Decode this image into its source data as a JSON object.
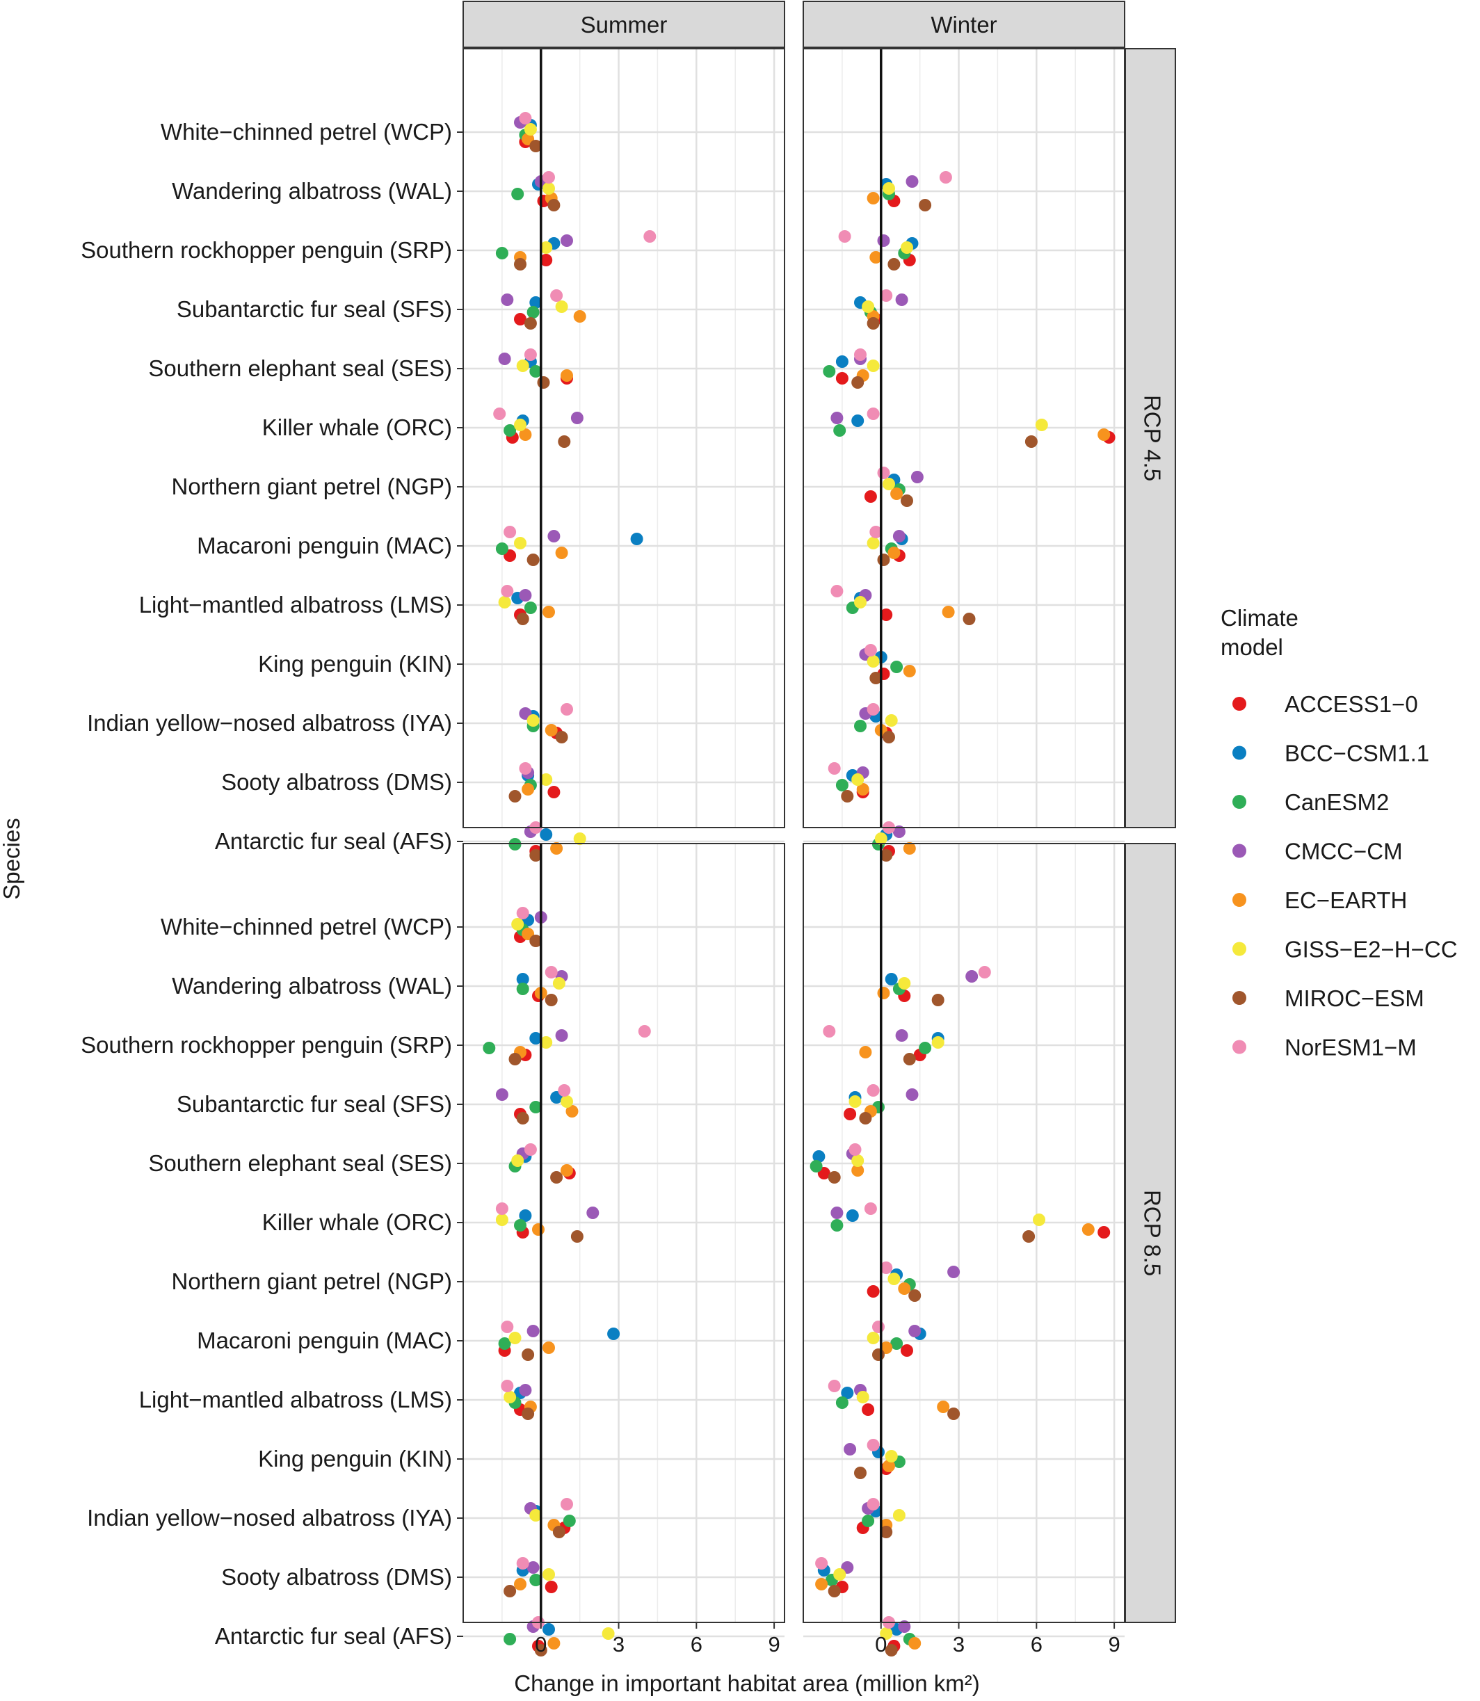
{
  "chart_data": {
    "type": "scatter",
    "xlabel": "Change in important habitat area (million km²)",
    "ylabel": "Species",
    "xlim": [
      -3,
      9.4
    ],
    "xticks": [
      0,
      3,
      6,
      9
    ],
    "grid": true,
    "columns": [
      "Summer",
      "Winter"
    ],
    "rows": [
      "RCP 4.5",
      "RCP 8.5"
    ],
    "species": [
      "White−chinned petrel (WCP)",
      "Wandering albatross (WAL)",
      "Southern rockhopper penguin (SRP)",
      "Subantarctic fur seal (SFS)",
      "Southern elephant seal (SES)",
      "Killer whale (ORC)",
      "Northern giant petrel (NGP)",
      "Macaroni penguin (MAC)",
      "Light−mantled albatross (LMS)",
      "King penguin (KIN)",
      "Indian yellow−nosed albatross (IYA)",
      "Sooty albatross (DMS)",
      "Antarctic fur seal (AFS)"
    ],
    "legend": {
      "title_lines": [
        "Climate",
        "model"
      ],
      "placement": "right",
      "entries": [
        {
          "name": "ACCESS1−0",
          "color": "#e41a1c"
        },
        {
          "name": "BCC−CSM1.1",
          "color": "#0a7fc2"
        },
        {
          "name": "CanESM2",
          "color": "#2fae57"
        },
        {
          "name": "CMCC−CM",
          "color": "#9b59b6"
        },
        {
          "name": "EC−EARTH",
          "color": "#f7931e"
        },
        {
          "name": "GISS−E2−H−CC",
          "color": "#f5e93b"
        },
        {
          "name": "MIROC−ESM",
          "color": "#a0562c"
        },
        {
          "name": "NorESM1−M",
          "color": "#f08cb4"
        }
      ]
    },
    "panels": [
      {
        "column": "Summer",
        "row": "RCP 4.5",
        "points": [
          [
            "WCP",
            [
              -0.6,
              -0.4,
              -0.6,
              -0.8,
              -0.5,
              -0.4,
              -0.2,
              -0.6
            ]
          ],
          [
            "WAL",
            [
              0.1,
              -0.1,
              -0.9,
              0.0,
              0.4,
              0.3,
              0.5,
              0.3
            ]
          ],
          [
            "SRP",
            [
              0.2,
              0.5,
              -1.5,
              1.0,
              -0.8,
              0.2,
              -0.8,
              4.2
            ]
          ],
          [
            "SFS",
            [
              -0.8,
              -0.2,
              -0.3,
              -1.3,
              1.5,
              0.8,
              -0.4,
              0.6
            ]
          ],
          [
            "SES",
            [
              1.0,
              -0.4,
              -0.2,
              -1.4,
              1.0,
              -0.7,
              0.1,
              -0.4
            ]
          ],
          [
            "ORC",
            [
              -1.1,
              -0.7,
              -1.2,
              1.4,
              -0.6,
              -0.8,
              0.9,
              -1.6
            ]
          ],
          [
            "NGP",
            []
          ],
          [
            "MAC",
            [
              -1.2,
              3.7,
              -1.5,
              0.5,
              0.8,
              -0.8,
              -0.3,
              -1.2
            ]
          ],
          [
            "LMS",
            [
              -0.8,
              -0.9,
              -0.4,
              -0.6,
              0.3,
              -1.4,
              -0.7,
              -1.3
            ]
          ],
          [
            "KIN",
            []
          ],
          [
            "IYA",
            [
              0.6,
              -0.3,
              -0.3,
              -0.6,
              0.4,
              -0.3,
              0.8,
              1.0
            ]
          ],
          [
            "DMS",
            [
              0.5,
              -0.5,
              -0.4,
              -0.5,
              -0.5,
              0.2,
              -1.0,
              -0.6
            ]
          ],
          [
            "AFS",
            [
              -0.2,
              0.2,
              -1.0,
              -0.4,
              0.6,
              1.5,
              -0.2,
              -0.2
            ]
          ]
        ]
      },
      {
        "column": "Winter",
        "row": "RCP 4.5",
        "points": [
          [
            "WCP",
            []
          ],
          [
            "WAL",
            [
              0.5,
              0.2,
              0.3,
              1.2,
              -0.3,
              0.3,
              1.7,
              2.5
            ]
          ],
          [
            "SRP",
            [
              1.1,
              1.2,
              0.9,
              0.1,
              -0.2,
              1.0,
              0.5,
              -1.4
            ]
          ],
          [
            "SFS",
            [
              -0.2,
              -0.8,
              -0.4,
              0.8,
              -0.3,
              -0.5,
              -0.3,
              0.2
            ]
          ],
          [
            "SES",
            [
              -1.5,
              -1.5,
              -2.0,
              -0.8,
              -0.7,
              -0.3,
              -0.9,
              -0.8
            ]
          ],
          [
            "ORC",
            [
              8.8,
              -0.9,
              -1.6,
              -1.7,
              8.6,
              6.2,
              5.8,
              -0.3
            ]
          ],
          [
            "NGP",
            [
              -0.4,
              0.5,
              0.7,
              1.4,
              0.6,
              0.3,
              1.0,
              0.1
            ]
          ],
          [
            "MAC",
            [
              0.7,
              0.8,
              0.4,
              0.7,
              0.5,
              -0.3,
              0.1,
              -0.2
            ]
          ],
          [
            "LMS",
            [
              0.2,
              -0.8,
              -1.1,
              -0.6,
              2.6,
              -0.8,
              3.4,
              -1.7
            ]
          ],
          [
            "KIN",
            [
              0.1,
              0.0,
              0.6,
              -0.6,
              1.1,
              -0.3,
              -0.2,
              -0.4
            ]
          ],
          [
            "IYA",
            [
              0.2,
              -0.2,
              -0.8,
              -0.6,
              0.0,
              0.4,
              0.3,
              -0.3
            ]
          ],
          [
            "DMS",
            [
              -0.7,
              -1.1,
              -1.5,
              -0.7,
              -0.7,
              -0.9,
              -1.3,
              -1.8
            ]
          ],
          [
            "AFS",
            [
              0.3,
              0.2,
              -0.1,
              0.7,
              1.1,
              0.0,
              0.2,
              0.3
            ]
          ]
        ]
      },
      {
        "column": "Summer",
        "row": "RCP 8.5",
        "points": [
          [
            "WCP",
            [
              -0.8,
              -0.5,
              -0.7,
              0.0,
              -0.5,
              -0.9,
              -0.2,
              -0.7
            ]
          ],
          [
            "WAL",
            [
              -0.1,
              -0.7,
              -0.7,
              0.8,
              0.0,
              0.7,
              0.4,
              0.4
            ]
          ],
          [
            "SRP",
            [
              -0.6,
              -0.2,
              -2.0,
              0.8,
              -0.8,
              0.2,
              -1.0,
              4.0
            ]
          ],
          [
            "SFS",
            [
              -0.8,
              0.6,
              -0.2,
              -1.5,
              1.2,
              1.0,
              -0.7,
              0.9
            ]
          ],
          [
            "SES",
            [
              1.1,
              -0.6,
              -1.0,
              -0.7,
              1.0,
              -0.9,
              0.6,
              -0.4
            ]
          ],
          [
            "ORC",
            [
              -0.7,
              -0.6,
              -0.8,
              2.0,
              -0.1,
              -1.5,
              1.4,
              -1.5
            ]
          ],
          [
            "NGP",
            []
          ],
          [
            "MAC",
            [
              -1.4,
              2.8,
              -1.4,
              -0.3,
              0.3,
              -1.0,
              -0.5,
              -1.3
            ]
          ],
          [
            "LMS",
            [
              -0.8,
              -0.8,
              -1.0,
              -0.6,
              -0.4,
              -1.2,
              -0.5,
              -1.3
            ]
          ],
          [
            "KIN",
            []
          ],
          [
            "IYA",
            [
              0.9,
              -0.2,
              1.1,
              -0.4,
              0.5,
              -0.2,
              0.7,
              1.0
            ]
          ],
          [
            "DMS",
            [
              0.4,
              -0.7,
              -0.2,
              -0.3,
              -0.8,
              0.3,
              -1.2,
              -0.7
            ]
          ],
          [
            "AFS",
            [
              -0.1,
              0.3,
              -1.2,
              -0.3,
              0.5,
              2.6,
              0.0,
              -0.1
            ]
          ]
        ]
      },
      {
        "column": "Winter",
        "row": "RCP 8.5",
        "points": [
          [
            "WCP",
            []
          ],
          [
            "WAL",
            [
              0.9,
              0.4,
              0.7,
              3.5,
              0.1,
              0.9,
              2.2,
              4.0
            ]
          ],
          [
            "SRP",
            [
              1.5,
              2.2,
              1.7,
              0.8,
              -0.6,
              2.2,
              1.1,
              -2.0
            ]
          ],
          [
            "SFS",
            [
              -1.2,
              -1.0,
              -0.1,
              1.2,
              -0.4,
              -1.0,
              -0.6,
              -0.3
            ]
          ],
          [
            "SES",
            [
              -2.2,
              -2.4,
              -2.5,
              -1.1,
              -0.9,
              -0.9,
              -1.8,
              -1.0
            ]
          ],
          [
            "ORC",
            [
              8.6,
              -1.1,
              -1.7,
              -1.7,
              8.0,
              6.1,
              5.7,
              -0.4
            ]
          ],
          [
            "NGP",
            [
              -0.3,
              0.6,
              1.1,
              2.8,
              0.9,
              0.5,
              1.3,
              0.2
            ]
          ],
          [
            "MAC",
            [
              1.0,
              1.5,
              0.6,
              1.3,
              0.2,
              -0.3,
              -0.1,
              -0.1
            ]
          ],
          [
            "LMS",
            [
              -0.5,
              -1.3,
              -1.5,
              -0.8,
              2.4,
              -0.7,
              2.8,
              -1.8
            ]
          ],
          [
            "KIN",
            [
              0.2,
              -0.1,
              0.7,
              -1.2,
              0.3,
              0.4,
              -0.8,
              -0.3
            ]
          ],
          [
            "IYA",
            [
              -0.7,
              -0.2,
              -0.5,
              -0.5,
              0.2,
              0.7,
              0.2,
              -0.3
            ]
          ],
          [
            "DMS",
            [
              -1.5,
              -2.2,
              -1.9,
              -1.3,
              -2.3,
              -1.6,
              -1.8,
              -2.3
            ]
          ],
          [
            "AFS",
            [
              0.5,
              0.6,
              1.1,
              0.9,
              1.3,
              0.2,
              0.4,
              0.3
            ]
          ]
        ]
      }
    ]
  }
}
